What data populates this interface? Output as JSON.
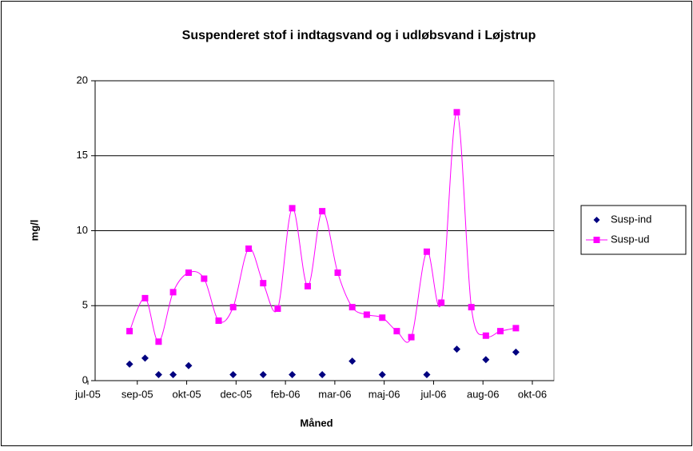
{
  "chart_data": {
    "type": "line",
    "title": "Suspenderet stof i indtagsvand og i udløbsvand i Løjstrup",
    "x_label": "Måned",
    "y_label": "mg/l",
    "x": [
      38577,
      38593,
      38607,
      38622,
      38638,
      38654,
      38669,
      38684,
      38700,
      38715,
      38730,
      38745,
      38761,
      38776,
      38792,
      38807,
      38822,
      38838,
      38853,
      38868,
      38884,
      38899,
      38915,
      38930,
      38945,
      38960,
      38976
    ],
    "xlim": [
      38534,
      38993
    ],
    "xticks": [
      {
        "value": 38534,
        "label": "jul-05"
      },
      {
        "value": 38585,
        "label": "sep-05"
      },
      {
        "value": 38636,
        "label": "okt-05"
      },
      {
        "value": 38687,
        "label": "dec-05"
      },
      {
        "value": 38738,
        "label": "feb-06"
      },
      {
        "value": 38789,
        "label": "mar-06"
      },
      {
        "value": 38840,
        "label": "maj-06"
      },
      {
        "value": 38891,
        "label": "jul-06"
      },
      {
        "value": 38942,
        "label": "aug-06"
      },
      {
        "value": 38993,
        "label": "okt-06"
      }
    ],
    "ylim": [
      0,
      20
    ],
    "yticks": [
      0,
      5,
      10,
      15,
      20
    ],
    "grid": true,
    "legend": "right",
    "series": [
      {
        "name": "Susp-ind",
        "color": "#000080",
        "style": "markers",
        "values": [
          1.1,
          1.5,
          0.4,
          0.4,
          1.0,
          null,
          null,
          0.4,
          null,
          0.4,
          null,
          0.4,
          null,
          0.4,
          null,
          1.3,
          null,
          0.4,
          null,
          null,
          0.4,
          null,
          2.1,
          null,
          1.4,
          null,
          1.9
        ]
      },
      {
        "name": "Susp-ud",
        "color": "#ff00ff",
        "style": "smooth-line",
        "values": [
          3.3,
          5.5,
          2.6,
          5.9,
          7.2,
          6.8,
          4.0,
          4.9,
          8.8,
          6.5,
          4.8,
          11.5,
          6.3,
          11.3,
          7.2,
          4.9,
          4.4,
          4.2,
          3.3,
          2.9,
          8.6,
          5.2,
          17.9,
          4.9,
          3.0,
          3.3,
          3.5
        ]
      }
    ]
  }
}
